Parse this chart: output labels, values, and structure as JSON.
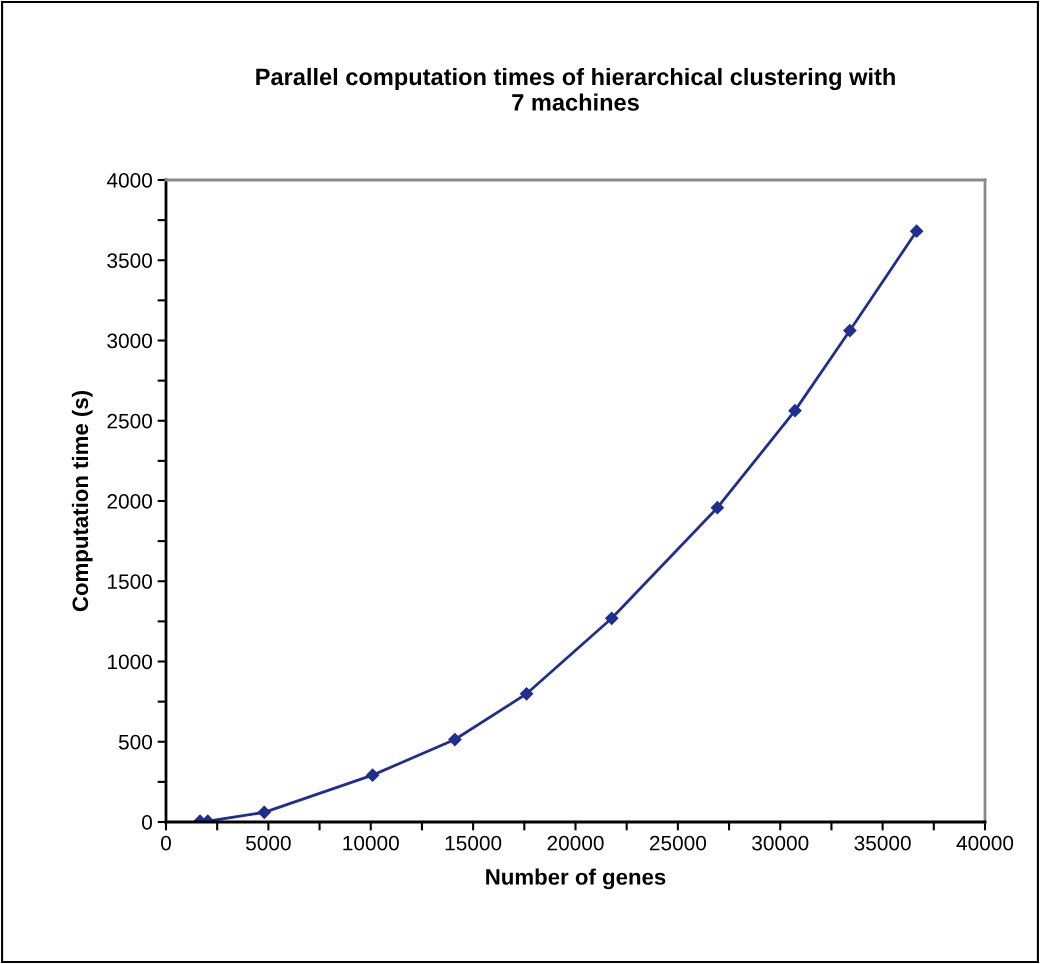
{
  "chart_data": {
    "type": "line",
    "title": "Parallel computation times of hierarchical clustering with\n7 machines",
    "xlabel": "Number of genes",
    "ylabel": "Computation time (s)",
    "x": [
      1660,
      2040,
      4800,
      10090,
      14110,
      17610,
      21770,
      26930,
      30720,
      33400,
      36660
    ],
    "series": [
      {
        "color": "#1f2f8f",
        "values": [
          5,
          5,
          60,
          292,
          514,
          799,
          1269,
          1958,
          2563,
          3062,
          3681
        ]
      }
    ],
    "xlim": [
      0,
      40000
    ],
    "xticks": [
      0,
      {
        "value": 2500,
        "label": null
      },
      5000,
      {
        "value": 7500,
        "label": null
      },
      10000,
      {
        "value": 12500,
        "label": null
      },
      15000,
      {
        "value": 17500,
        "label": null
      },
      20000,
      {
        "value": 22500,
        "label": null
      },
      25000,
      {
        "value": 27500,
        "label": null
      },
      30000,
      {
        "value": 32500,
        "label": null
      },
      35000,
      {
        "value": 37500,
        "label": null
      },
      40000
    ],
    "ylim": [
      0,
      4000
    ],
    "yticks": [
      0,
      {
        "value": 250,
        "label": null
      },
      500,
      {
        "value": 750,
        "label": null
      },
      1000,
      {
        "value": 1250,
        "label": null
      },
      1500,
      {
        "value": 1750,
        "label": null
      },
      2000,
      {
        "value": 2250,
        "label": null
      },
      2500,
      {
        "value": 2750,
        "label": null
      },
      3000,
      {
        "value": 3250,
        "label": null
      },
      3500,
      {
        "value": 3750,
        "label": null
      },
      4000
    ],
    "grid": false,
    "legend": false,
    "marker": "diamond",
    "line_style": "solid"
  }
}
